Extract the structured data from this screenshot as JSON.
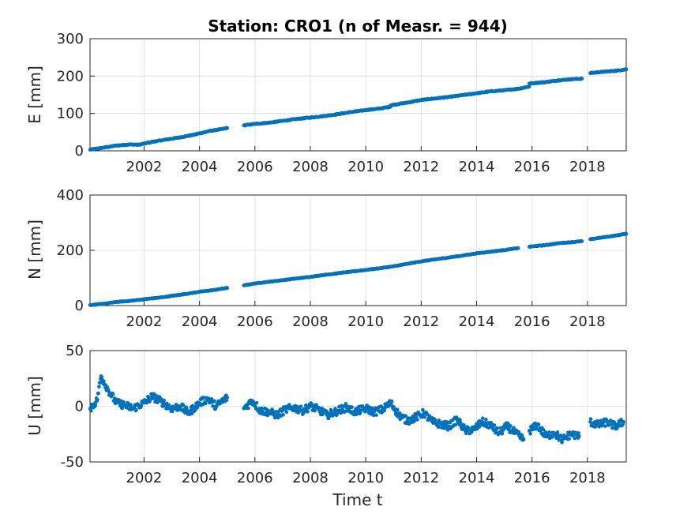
{
  "chart_data": {
    "type": "scatter",
    "title": "Station: CRO1 (n of Measr. = 944)",
    "xlabel": "Time t",
    "x_ticks": [
      "2002",
      "2004",
      "2006",
      "2008",
      "2010",
      "2012",
      "2014",
      "2016",
      "2018"
    ],
    "xlim": [
      2000.05,
      2019.4
    ],
    "color": "#0072bd",
    "grid": true,
    "panels": [
      {
        "ylabel": "E [mm]",
        "ylim": [
          0,
          300
        ],
        "y_ticks": [
          "0",
          "100",
          "200",
          "300"
        ],
        "segments": [
          {
            "x": [
              2000.05,
              2000.5,
              2001.0,
              2001.5,
              2001.8,
              2002.3,
              2002.8,
              2003.3,
              2003.8,
              2004.3,
              2004.8,
              2005.0
            ],
            "y": [
              3,
              8,
              14,
              17,
              16,
              24,
              30,
              36,
              43,
              52,
              58,
              61
            ]
          },
          {
            "x": [
              2005.6,
              2006.0,
              2006.5,
              2007.0,
              2007.5,
              2008.0,
              2008.5,
              2009.0,
              2009.5,
              2010.0,
              2010.5,
              2010.9
            ],
            "y": [
              68,
              72,
              75,
              80,
              85,
              89,
              93,
              98,
              104,
              109,
              113,
              118
            ]
          },
          {
            "x": [
              2010.9,
              2011.5,
              2012.0,
              2012.5,
              2013.0,
              2013.5,
              2014.0,
              2014.5,
              2015.0,
              2015.5,
              2015.9
            ],
            "y": [
              122,
              129,
              136,
              140,
              144,
              149,
              154,
              159,
              162,
              166,
              172
            ]
          },
          {
            "x": [
              2015.9,
              2016.5,
              2017.0,
              2017.5,
              2017.8
            ],
            "y": [
              180,
              184,
              189,
              192,
              193
            ]
          },
          {
            "x": [
              2018.1,
              2018.5,
              2019.0,
              2019.4
            ],
            "y": [
              208,
              211,
              214,
              218
            ]
          }
        ]
      },
      {
        "ylabel": "N [mm]",
        "ylim": [
          0,
          400
        ],
        "y_ticks": [
          "0",
          "200",
          "400"
        ],
        "segments": [
          {
            "x": [
              2000.05,
              2000.5,
              2001.0,
              2001.5,
              2002.0,
              2002.5,
              2003.0,
              2003.5,
              2004.0,
              2004.5,
              2005.0
            ],
            "y": [
              2,
              6,
              13,
              17,
              23,
              28,
              35,
              42,
              50,
              56,
              64
            ]
          },
          {
            "x": [
              2005.6,
              2006.0,
              2006.5,
              2007.0,
              2007.5,
              2008.0,
              2008.5,
              2009.0,
              2009.5,
              2010.0,
              2010.5,
              2011.0,
              2011.5,
              2012.0,
              2012.5,
              2013.0,
              2013.5,
              2014.0,
              2014.5,
              2015.0,
              2015.5
            ],
            "y": [
              73,
              80,
              86,
              92,
              98,
              104,
              111,
              117,
              123,
              129,
              135,
              142,
              151,
              160,
              167,
              174,
              181,
              189,
              195,
              201,
              208
            ]
          },
          {
            "x": [
              2015.9,
              2016.5,
              2017.0,
              2017.5,
              2017.8
            ],
            "y": [
              213,
              219,
              226,
              230,
              233
            ]
          },
          {
            "x": [
              2018.1,
              2018.5,
              2019.0,
              2019.4
            ],
            "y": [
              240,
              246,
              253,
              260
            ]
          }
        ]
      },
      {
        "ylabel": "U [mm]",
        "ylim": [
          -50,
          50
        ],
        "y_ticks": [
          "-50",
          "0",
          "50"
        ],
        "segments": [
          {
            "x": [
              2000.05,
              2000.3,
              2000.45,
              2000.7,
              2001.0,
              2001.3,
              2001.6,
              2002.0,
              2002.3,
              2002.7,
              2003.0,
              2003.3,
              2003.6,
              2004.0,
              2004.3,
              2004.6,
              2005.0
            ],
            "y": [
              -2,
              5,
              27,
              15,
              3,
              1,
              -2,
              3,
              9,
              3,
              -2,
              0,
              -6,
              3,
              7,
              0,
              8
            ]
          },
          {
            "x": [
              2005.6,
              2005.9,
              2006.2,
              2006.5,
              2006.8,
              2007.1,
              2007.4,
              2007.7,
              2008.0,
              2008.3,
              2008.6,
              2009.0,
              2009.3,
              2009.6,
              2010.0,
              2010.3,
              2010.6,
              2010.9,
              2011.2,
              2011.5,
              2011.8,
              2012.1,
              2012.4,
              2012.7,
              2013.0,
              2013.3,
              2013.6,
              2013.9,
              2014.2,
              2014.5,
              2014.8,
              2015.1,
              2015.4,
              2015.7
            ],
            "y": [
              -2,
              5,
              -4,
              -5,
              -8,
              -3,
              -1,
              -4,
              0,
              -3,
              -8,
              -4,
              -1,
              -5,
              -2,
              -5,
              -3,
              3,
              -8,
              -13,
              -10,
              -6,
              -14,
              -16,
              -18,
              -12,
              -22,
              -21,
              -14,
              -17,
              -24,
              -18,
              -24,
              -30
            ]
          },
          {
            "x": [
              2015.9,
              2016.2,
              2016.5,
              2016.8,
              2017.1,
              2017.4,
              2017.7
            ],
            "y": [
              -22,
              -17,
              -27,
              -24,
              -30,
              -25,
              -27
            ]
          },
          {
            "x": [
              2018.1,
              2018.4,
              2018.7,
              2019.0,
              2019.3
            ],
            "y": [
              -14,
              -17,
              -14,
              -18,
              -14
            ]
          }
        ]
      }
    ]
  }
}
